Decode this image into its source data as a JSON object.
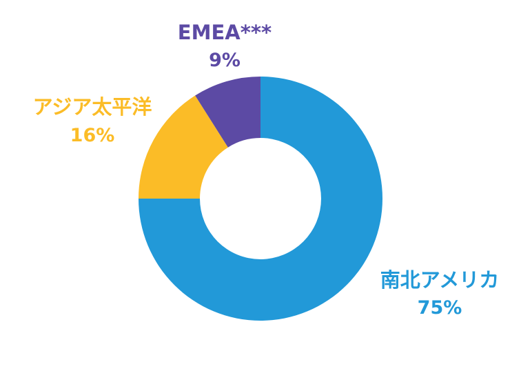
{
  "chart_data": {
    "type": "pie",
    "variant": "donut",
    "title": "",
    "slices": [
      {
        "label": "南北アメリカ",
        "value": 75,
        "value_label": "75%",
        "color": "#2299d8"
      },
      {
        "label": "アジア太平洋",
        "value": 16,
        "value_label": "16%",
        "color": "#fbbc27"
      },
      {
        "label": "EMEA***",
        "value": 9,
        "value_label": "9%",
        "color": "#5c4aa4"
      }
    ]
  }
}
